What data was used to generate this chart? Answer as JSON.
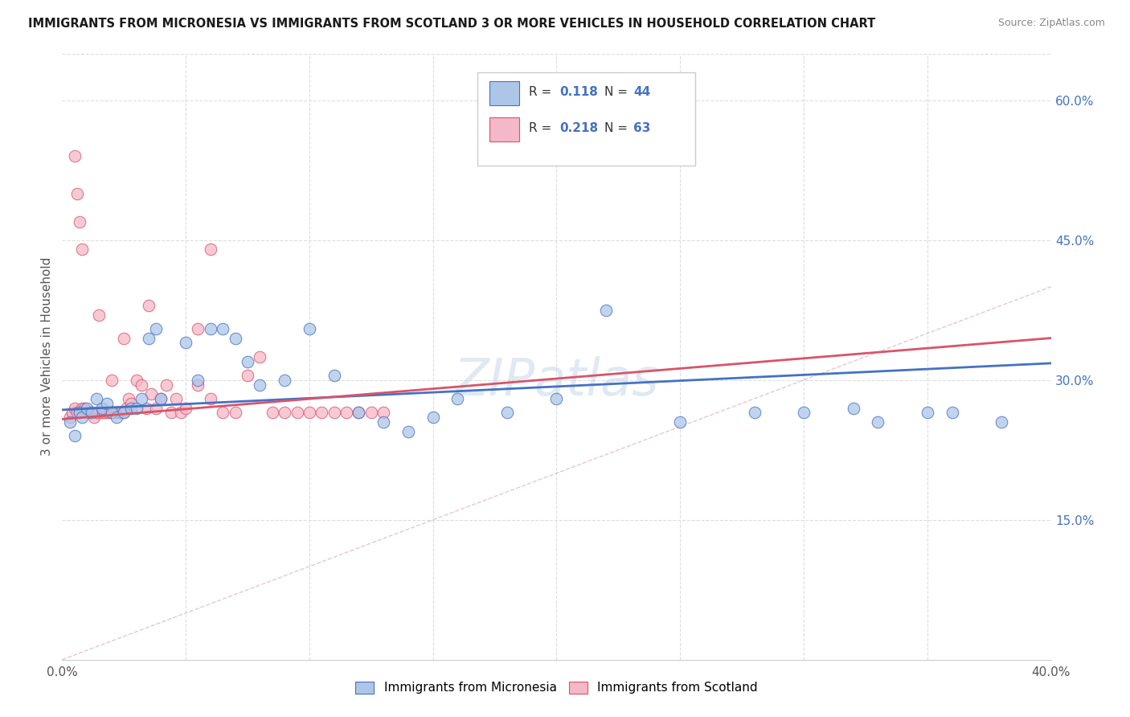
{
  "title": "IMMIGRANTS FROM MICRONESIA VS IMMIGRANTS FROM SCOTLAND 3 OR MORE VEHICLES IN HOUSEHOLD CORRELATION CHART",
  "source": "Source: ZipAtlas.com",
  "ylabel": "3 or more Vehicles in Household",
  "xlim": [
    0.0,
    0.4
  ],
  "ylim": [
    0.0,
    0.65
  ],
  "xtick_positions": [
    0.0,
    0.05,
    0.1,
    0.15,
    0.2,
    0.25,
    0.3,
    0.35,
    0.4
  ],
  "xticklabels": [
    "0.0%",
    "",
    "",
    "",
    "",
    "",
    "",
    "",
    "40.0%"
  ],
  "ytick_positions": [
    0.0,
    0.15,
    0.3,
    0.45,
    0.6
  ],
  "yticklabels_right": [
    "",
    "15.0%",
    "30.0%",
    "45.0%",
    "60.0%"
  ],
  "legend_label1": "Immigrants from Micronesia",
  "legend_label2": "Immigrants from Scotland",
  "color_blue": "#adc6e8",
  "color_pink": "#f5b8c8",
  "line_blue": "#4472c4",
  "line_pink": "#d9546a",
  "diag_color": "#d8a0b0",
  "watermark": "ZIPatlas",
  "blue_x": [
    0.003,
    0.005,
    0.007,
    0.008,
    0.01,
    0.012,
    0.014,
    0.016,
    0.018,
    0.02,
    0.022,
    0.025,
    0.028,
    0.03,
    0.032,
    0.035,
    0.038,
    0.04,
    0.05,
    0.055,
    0.06,
    0.065,
    0.07,
    0.075,
    0.08,
    0.09,
    0.1,
    0.11,
    0.12,
    0.13,
    0.14,
    0.15,
    0.16,
    0.18,
    0.2,
    0.22,
    0.25,
    0.28,
    0.3,
    0.33,
    0.35,
    0.36,
    0.38,
    0.32
  ],
  "blue_y": [
    0.255,
    0.24,
    0.265,
    0.26,
    0.27,
    0.265,
    0.28,
    0.27,
    0.275,
    0.265,
    0.26,
    0.265,
    0.27,
    0.27,
    0.28,
    0.345,
    0.355,
    0.28,
    0.34,
    0.3,
    0.355,
    0.355,
    0.345,
    0.32,
    0.295,
    0.3,
    0.355,
    0.305,
    0.265,
    0.255,
    0.245,
    0.26,
    0.28,
    0.265,
    0.28,
    0.375,
    0.255,
    0.265,
    0.265,
    0.255,
    0.265,
    0.265,
    0.255,
    0.27
  ],
  "pink_x": [
    0.003,
    0.004,
    0.005,
    0.006,
    0.007,
    0.008,
    0.009,
    0.01,
    0.011,
    0.012,
    0.013,
    0.014,
    0.015,
    0.016,
    0.017,
    0.018,
    0.019,
    0.02,
    0.021,
    0.022,
    0.023,
    0.024,
    0.025,
    0.026,
    0.027,
    0.028,
    0.03,
    0.032,
    0.034,
    0.036,
    0.038,
    0.04,
    0.042,
    0.044,
    0.046,
    0.048,
    0.05,
    0.055,
    0.06,
    0.065,
    0.07,
    0.075,
    0.08,
    0.085,
    0.09,
    0.095,
    0.1,
    0.105,
    0.11,
    0.115,
    0.12,
    0.125,
    0.13,
    0.005,
    0.006,
    0.007,
    0.008,
    0.015,
    0.02,
    0.06,
    0.025,
    0.035,
    0.055
  ],
  "pink_y": [
    0.26,
    0.265,
    0.27,
    0.265,
    0.265,
    0.27,
    0.27,
    0.265,
    0.265,
    0.265,
    0.26,
    0.265,
    0.265,
    0.265,
    0.265,
    0.265,
    0.265,
    0.265,
    0.265,
    0.265,
    0.265,
    0.265,
    0.265,
    0.27,
    0.28,
    0.275,
    0.3,
    0.295,
    0.27,
    0.285,
    0.27,
    0.28,
    0.295,
    0.265,
    0.28,
    0.265,
    0.27,
    0.295,
    0.28,
    0.265,
    0.265,
    0.305,
    0.325,
    0.265,
    0.265,
    0.265,
    0.265,
    0.265,
    0.265,
    0.265,
    0.265,
    0.265,
    0.265,
    0.54,
    0.5,
    0.47,
    0.44,
    0.37,
    0.3,
    0.44,
    0.345,
    0.38,
    0.355
  ],
  "blue_line_x": [
    0.0,
    0.4
  ],
  "blue_line_y": [
    0.268,
    0.318
  ],
  "pink_line_x": [
    0.0,
    0.4
  ],
  "pink_line_y": [
    0.258,
    0.345
  ]
}
